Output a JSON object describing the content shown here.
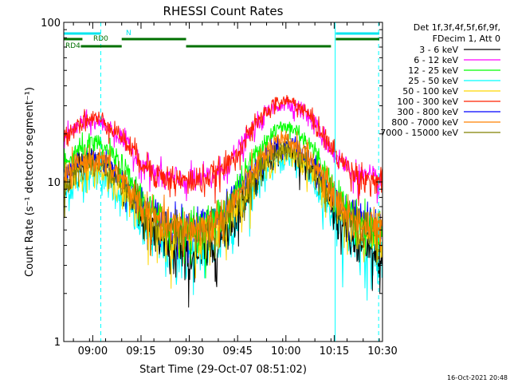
{
  "chart_data": {
    "type": "line",
    "title": "RHESSI Count Rates",
    "xlabel": "Start Time (29-Oct-07 08:51:02)",
    "ylabel": "Count Rate (s⁻¹ detector segment⁻¹)",
    "x_unit": "minutes after 08:51:02",
    "xlim": [
      0,
      99
    ],
    "ylim": [
      1,
      100
    ],
    "y_scale": "log",
    "x_ticks": [
      {
        "x": 9,
        "label": "09:00"
      },
      {
        "x": 24,
        "label": "09:15"
      },
      {
        "x": 39,
        "label": "09:30"
      },
      {
        "x": 54,
        "label": "09:45"
      },
      {
        "x": 69,
        "label": "10:00"
      },
      {
        "x": 84,
        "label": "10:15"
      },
      {
        "x": 99,
        "label": "10:30"
      }
    ],
    "y_ticks": [
      {
        "y": 1,
        "label": "1"
      },
      {
        "y": 10,
        "label": "10"
      },
      {
        "y": 100,
        "label": "100"
      }
    ],
    "legend": {
      "placement": "right",
      "header": [
        "Det 1f,3f,4f,5f,6f,9f,",
        "FDecim 1, Att 0"
      ]
    },
    "series": [
      {
        "name": "3 - 6 keV",
        "color": "#000000",
        "night": 3.4,
        "peak1": 14,
        "peak2": 16
      },
      {
        "name": "6 - 12 keV",
        "color": "#ff00ff",
        "night": 10,
        "peak1": 24,
        "peak2": 31
      },
      {
        "name": "12 - 25 keV",
        "color": "#00ff00",
        "night": 5,
        "peak1": 17,
        "peak2": 22
      },
      {
        "name": "25 - 50 keV",
        "color": "#00ffff",
        "night": 3.5,
        "peak1": 11,
        "peak2": 14
      },
      {
        "name": "50 - 100 keV",
        "color": "#ffd700",
        "night": 4.5,
        "peak1": 12,
        "peak2": 15
      },
      {
        "name": "100 - 300 keV",
        "color": "#ff2000",
        "night": 10,
        "peak1": 25,
        "peak2": 32
      },
      {
        "name": "300 - 800 keV",
        "color": "#0000ff",
        "night": 5.3,
        "peak1": 14,
        "peak2": 17
      },
      {
        "name": "800 - 7000 keV",
        "color": "#ff8000",
        "night": 5,
        "peak1": 14,
        "peak2": 18
      },
      {
        "name": "7000 - 15000 keV",
        "color": "#808000",
        "night": 4.8,
        "peak1": 13,
        "peak2": 16
      }
    ],
    "peaks_x": [
      9,
      69
    ],
    "peak_width": 9,
    "flag_bars": [
      {
        "label": "N",
        "color": "#00e5ee",
        "segments": [
          [
            0,
            11.5
          ],
          [
            84.5,
            98
          ]
        ]
      },
      {
        "label": "RD0",
        "color": "#007000",
        "segments": [
          [
            0,
            5.8
          ],
          [
            18,
            38
          ],
          [
            84.5,
            98
          ]
        ]
      },
      {
        "label": "RD4",
        "color": "#007000",
        "segments": [
          [
            5.3,
            18
          ],
          [
            38,
            83
          ]
        ]
      }
    ],
    "night_lines": [
      {
        "x": 0,
        "style": "solid"
      },
      {
        "x": 11.5,
        "style": "dashed"
      },
      {
        "x": 84.3,
        "style": "solid"
      },
      {
        "x": 97.8,
        "style": "dashed"
      }
    ],
    "night_line_color": "#00ffff"
  },
  "timestamp": "16-Oct-2021 20:48"
}
